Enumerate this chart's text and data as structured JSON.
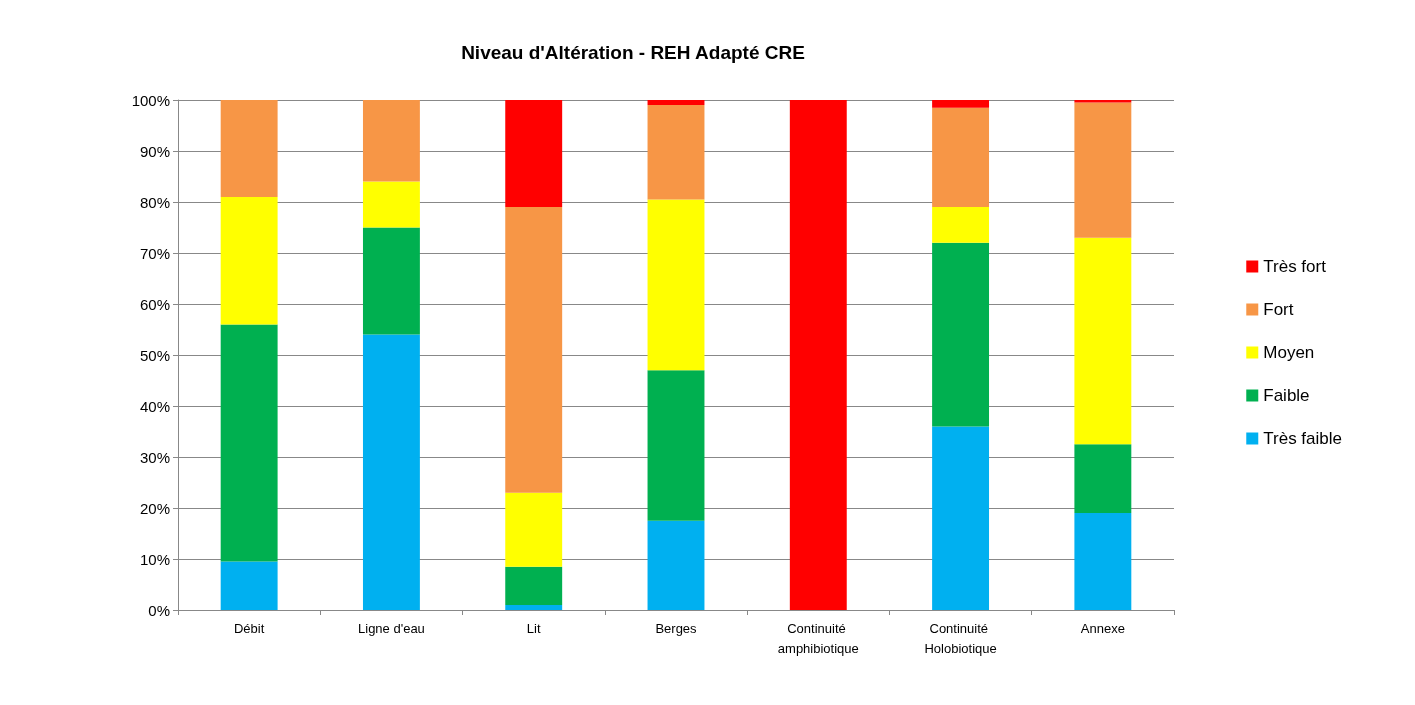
{
  "chart_data": {
    "type": "bar",
    "title": "Niveau d'Altération - REH Adapté CRE",
    "categories": [
      "Débit",
      "Ligne d'eau",
      "Lit",
      "Berges",
      "Continuité amphibiotique",
      "Continuité Holobiotique",
      "Annexe"
    ],
    "series": [
      {
        "name": "Très faible",
        "color": "#00b0f0",
        "values": [
          9.5,
          54,
          1,
          17.5,
          0,
          36,
          19
        ]
      },
      {
        "name": "Faible",
        "color": "#00b050",
        "values": [
          46.5,
          21,
          7.5,
          29.5,
          0,
          36,
          13.5
        ]
      },
      {
        "name": "Moyen",
        "color": "#ffff00",
        "values": [
          25,
          9,
          14.5,
          33.5,
          0,
          7,
          40.5
        ]
      },
      {
        "name": "Fort",
        "color": "#f79646",
        "values": [
          19,
          16,
          56,
          18.5,
          0,
          19.5,
          26.5
        ]
      },
      {
        "name": "Très fort",
        "color": "#ff0000",
        "values": [
          0,
          0,
          21,
          1,
          100,
          1.5,
          0.5
        ]
      }
    ],
    "stacked": true,
    "ylim": [
      0,
      100
    ],
    "yticks": [
      {
        "value": 0,
        "label": "0%"
      },
      {
        "value": 10,
        "label": "10%"
      },
      {
        "value": 20,
        "label": "20%"
      },
      {
        "value": 30,
        "label": "30%"
      },
      {
        "value": 40,
        "label": "40%"
      },
      {
        "value": 50,
        "label": "50%"
      },
      {
        "value": 60,
        "label": "60%"
      },
      {
        "value": 70,
        "label": "70%"
      },
      {
        "value": 80,
        "label": "80%"
      },
      {
        "value": 90,
        "label": "90%"
      },
      {
        "value": 100,
        "label": "100%"
      }
    ],
    "grid": "y",
    "legend": "right"
  }
}
